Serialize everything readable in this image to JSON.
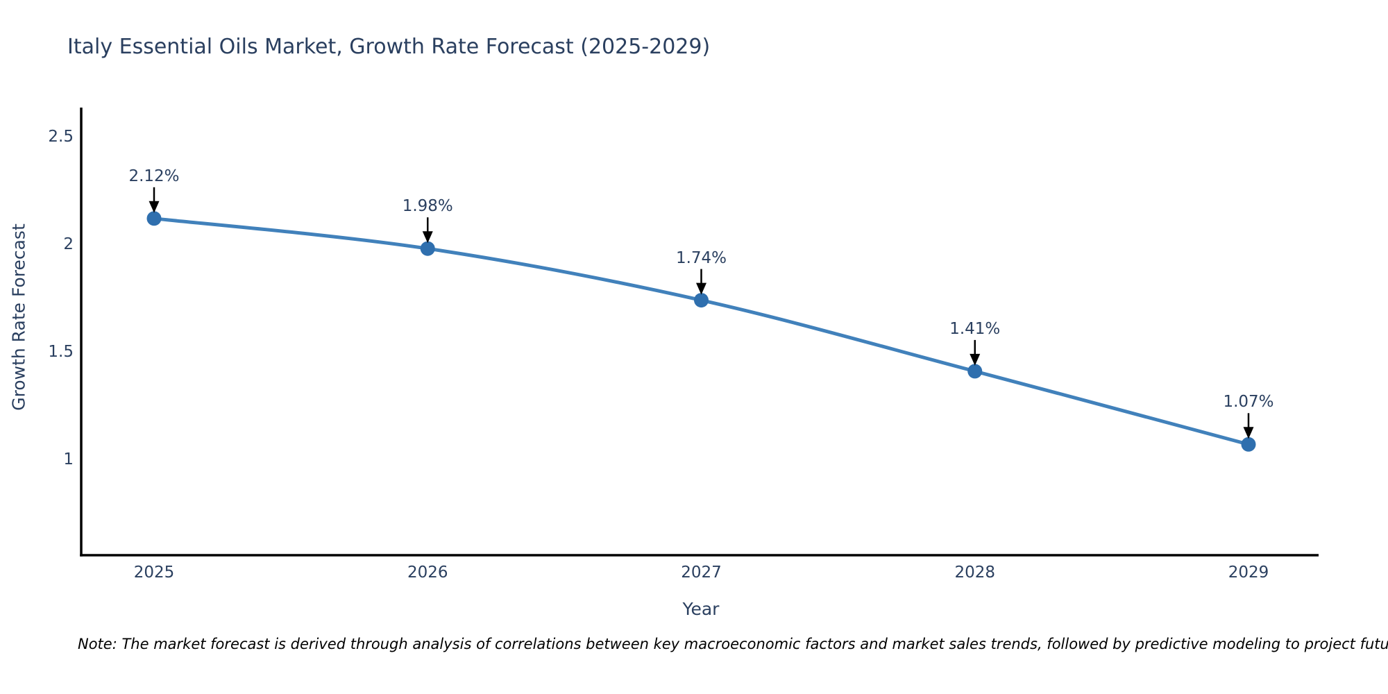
{
  "header": {
    "title": "Italy Essential Oils Market, Growth Rate Forecast (2025-2029)"
  },
  "axes": {
    "x_title": "Year",
    "y_title": "Growth Rate Forecast",
    "x_tick_labels": [
      "2025",
      "2026",
      "2027",
      "2028",
      "2029"
    ],
    "y_tick_labels": [
      "2.5",
      "2",
      "1.5",
      "1"
    ],
    "y_tick_values": [
      2.5,
      2.0,
      1.5,
      1.0
    ]
  },
  "footnote": "Note: The market forecast is derived through analysis of correlations between key macroeconomic factors and market sales trends, followed by predictive modeling to project future sales",
  "colors": {
    "line": "#4181bb",
    "marker": "#2f6fae",
    "heading_text": "#2a3f5f",
    "tick_text": "#2a3f5f",
    "annotation_text": "#2a3f5f",
    "arrow": "#000000",
    "axis_line": "#000000",
    "background": "#ffffff",
    "note_text": "#000000"
  },
  "chart_data": {
    "type": "line",
    "title": "Italy Essential Oils Market, Growth Rate Forecast (2025-2029)",
    "xlabel": "Year",
    "ylabel": "Growth Rate Forecast",
    "x": [
      2025,
      2026,
      2027,
      2028,
      2029
    ],
    "series": [
      {
        "name": "Growth Rate Forecast",
        "values": [
          2.12,
          1.98,
          1.74,
          1.41,
          1.07
        ]
      }
    ],
    "data_labels": [
      "2.12%",
      "1.98%",
      "1.74%",
      "1.41%",
      "1.07%"
    ],
    "ylim": [
      0.55,
      2.65
    ],
    "yticks": [
      1,
      1.5,
      2,
      2.5
    ],
    "grid": false,
    "legend": false,
    "line_shape": "spline",
    "annotations": "each point labeled with its percentage value and a black downward arrow pointing at the marker"
  }
}
